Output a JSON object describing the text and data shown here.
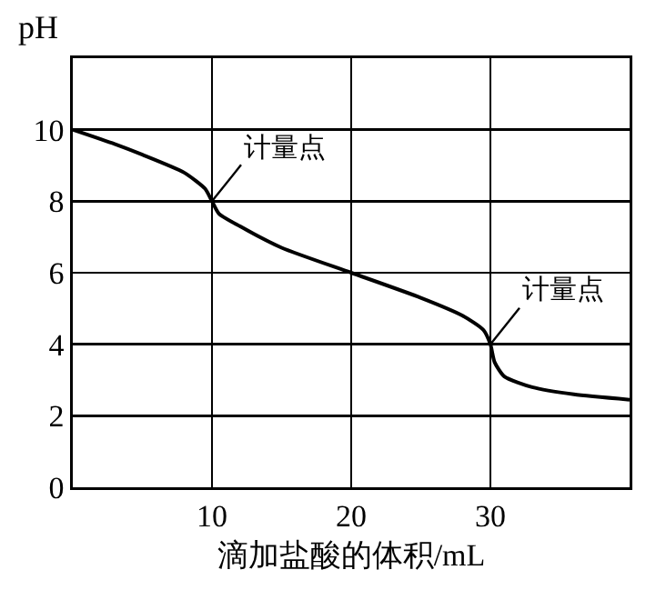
{
  "chart_data": {
    "type": "line",
    "xlabel": "滴加盐酸的体积/mL",
    "ylabel": "pH",
    "x": [
      0,
      3,
      5,
      8,
      9.5,
      10,
      10.5,
      12,
      15,
      20,
      25,
      28,
      29.5,
      30,
      30.3,
      31,
      33,
      36,
      40
    ],
    "series": [
      {
        "color": "#000000",
        "values": [
          10,
          9.6,
          9.3,
          8.8,
          8.35,
          8,
          7.65,
          7.3,
          6.7,
          6,
          5.3,
          4.8,
          4.4,
          4,
          3.5,
          3.1,
          2.8,
          2.6,
          2.45
        ]
      }
    ],
    "xlim": [
      0,
      40
    ],
    "xticks": [
      10,
      20,
      30
    ],
    "ylim": [
      0,
      12
    ],
    "yticks": [
      0,
      2,
      4,
      6,
      8,
      10
    ],
    "grid": true,
    "marker": "none",
    "line_style": "solid",
    "annotations": [
      {
        "text": "计量点",
        "x": 10,
        "y": 8
      },
      {
        "text": "计量点",
        "x": 30,
        "y": 4
      }
    ]
  }
}
